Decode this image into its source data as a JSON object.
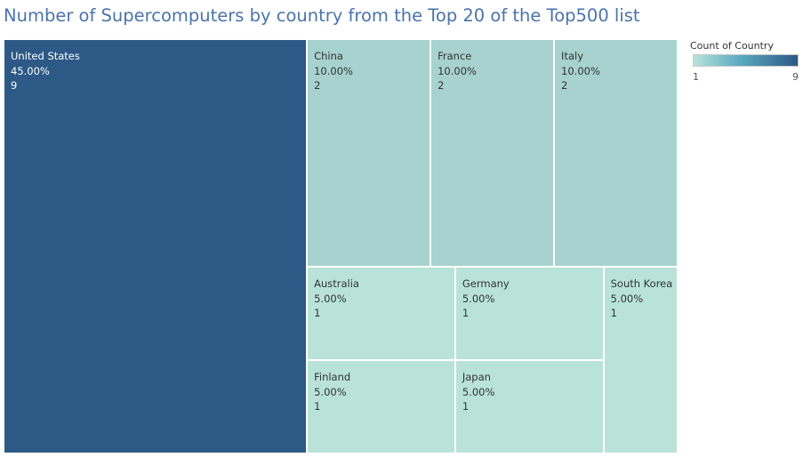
{
  "title": "Number of Supercomputers by country from the Top 20 of the Top500 list",
  "colors": {
    "low": "#b9e3d9",
    "high": "#2c5985",
    "title": "#4a74a8"
  },
  "legend": {
    "title": "Count of Country",
    "min_label": "1",
    "max_label": "9"
  },
  "chart_data": {
    "type": "treemap",
    "title": "Number of Supercomputers by country from the Top 20 of the Top500 list",
    "color_legend": "Count of Country",
    "color_range": [
      1,
      9
    ],
    "items": [
      {
        "label": "United States",
        "percent": "45.00%",
        "count": 9
      },
      {
        "label": "China",
        "percent": "10.00%",
        "count": 2
      },
      {
        "label": "France",
        "percent": "10.00%",
        "count": 2
      },
      {
        "label": "Italy",
        "percent": "10.00%",
        "count": 2
      },
      {
        "label": "Australia",
        "percent": "5.00%",
        "count": 1
      },
      {
        "label": "Germany",
        "percent": "5.00%",
        "count": 1
      },
      {
        "label": "South Korea",
        "percent": "5.00%",
        "count": 1
      },
      {
        "label": "Finland",
        "percent": "5.00%",
        "count": 1
      },
      {
        "label": "Japan",
        "percent": "5.00%",
        "count": 1
      }
    ]
  }
}
